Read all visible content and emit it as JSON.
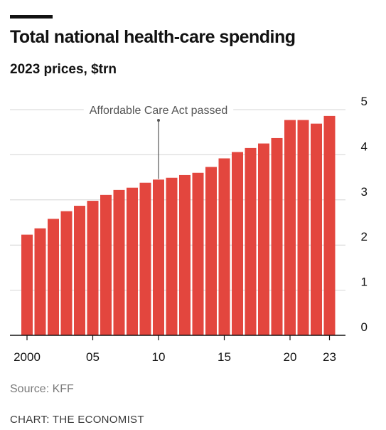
{
  "header": {
    "title": "Total national health-care spending",
    "subtitle": "2023 prices, $trn"
  },
  "footer": {
    "source": "Source: KFF",
    "credit": "CHART: THE ECONOMIST"
  },
  "chart_data": {
    "type": "bar",
    "title": "Total national health-care spending",
    "subtitle": "2023 prices, $trn",
    "categories": [
      "2000",
      "2001",
      "2002",
      "2003",
      "2004",
      "2005",
      "2006",
      "2007",
      "2008",
      "2009",
      "2010",
      "2011",
      "2012",
      "2013",
      "2014",
      "2015",
      "2016",
      "2017",
      "2018",
      "2019",
      "2020",
      "2021",
      "2022",
      "2023"
    ],
    "x_tick_labels": [
      "2000",
      "05",
      "10",
      "15",
      "20",
      "23"
    ],
    "x_tick_years": [
      "2000",
      "2005",
      "2010",
      "2015",
      "2020",
      "2023"
    ],
    "values": [
      2.23,
      2.37,
      2.58,
      2.75,
      2.87,
      2.98,
      3.11,
      3.22,
      3.27,
      3.38,
      3.45,
      3.49,
      3.55,
      3.6,
      3.73,
      3.92,
      4.06,
      4.15,
      4.25,
      4.37,
      4.77,
      4.77,
      4.69,
      4.86
    ],
    "ylim": [
      0,
      5
    ],
    "y_ticks": [
      0,
      1,
      2,
      3,
      4,
      5
    ],
    "y_axis_side": "right",
    "grid": true,
    "bar_color": "#e3463e",
    "annotation": {
      "text": "Affordable Care Act passed",
      "category": "2010"
    }
  }
}
